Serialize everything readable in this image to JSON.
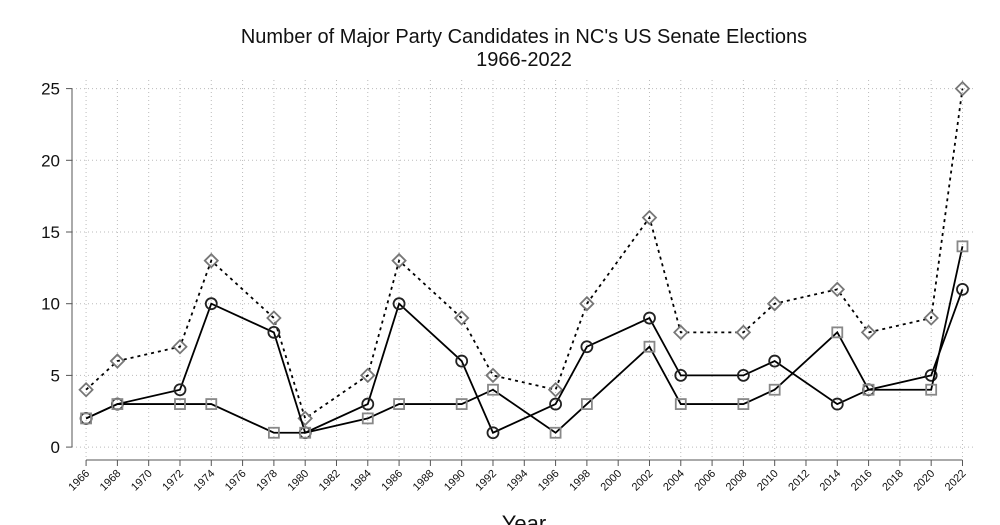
{
  "chart_data": {
    "type": "line",
    "title": [
      "Number of Major Party Candidates in NC's US Senate Elections",
      "1966-2022"
    ],
    "x_label": "Year",
    "x": [
      1966,
      1968,
      1972,
      1974,
      1978,
      1980,
      1984,
      1986,
      1990,
      1992,
      1996,
      1998,
      2002,
      2004,
      2008,
      2010,
      2014,
      2016,
      2020,
      2022
    ],
    "series": [
      {
        "color": "#000000",
        "marker": "diamond",
        "marker_color": "#777777",
        "dash": "dotted",
        "values": [
          4,
          6,
          7,
          13,
          9,
          2,
          5,
          13,
          9,
          5,
          4,
          10,
          16,
          8,
          8,
          10,
          11,
          8,
          9,
          25
        ]
      },
      {
        "color": "#000000",
        "marker": "circle",
        "marker_color": "#222222",
        "dash": "solid",
        "values": [
          2,
          3,
          4,
          10,
          8,
          1,
          3,
          10,
          6,
          1,
          3,
          7,
          9,
          5,
          5,
          6,
          3,
          4,
          5,
          11
        ]
      },
      {
        "color": "#000000",
        "marker": "square",
        "marker_color": "#888888",
        "dash": "solid",
        "values": [
          2,
          3,
          3,
          3,
          1,
          1,
          2,
          3,
          3,
          4,
          1,
          3,
          7,
          3,
          3,
          4,
          8,
          4,
          4,
          14
        ]
      }
    ],
    "xlim": [
      1965.1,
      2022.8
    ],
    "xticks": [
      1966,
      1968,
      1970,
      1972,
      1974,
      1976,
      1978,
      1980,
      1982,
      1984,
      1986,
      1988,
      1990,
      1992,
      1994,
      1996,
      1998,
      2000,
      2002,
      2004,
      2006,
      2008,
      2010,
      2012,
      2014,
      2016,
      2018,
      2020,
      2022
    ],
    "ylim": [
      -0.9,
      25.6
    ],
    "yticks": [
      0,
      5,
      10,
      15,
      20,
      25
    ],
    "grid": true
  }
}
